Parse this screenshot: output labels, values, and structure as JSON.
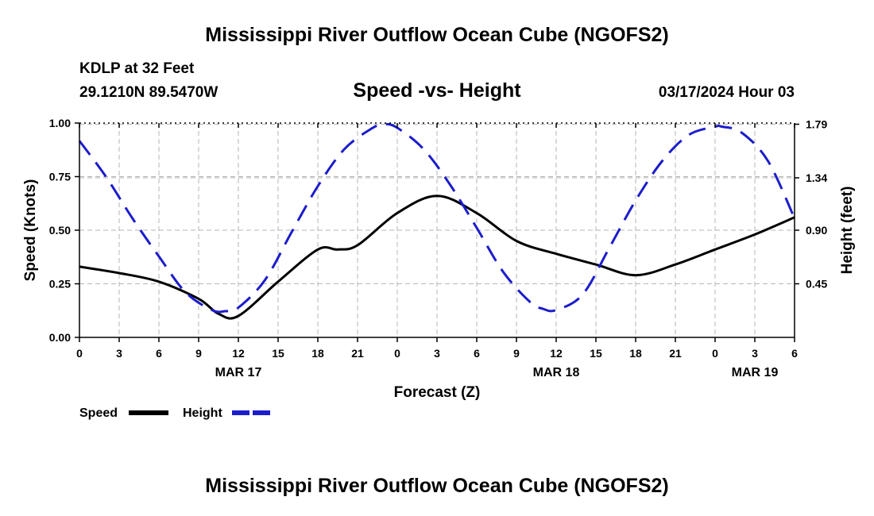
{
  "page": {
    "title": "Mississippi River Outflow Ocean Cube (NGOFS2)",
    "footer_title": "Mississippi River Outflow Ocean Cube (NGOFS2)",
    "station": "KDLP at 32 Feet",
    "coords": "29.1210N  89.5470W",
    "datetime": "03/17/2024 Hour 03"
  },
  "colors": {
    "speed": "#000000",
    "height": "#1c1ccc",
    "grid": "#b4b4b4"
  },
  "chart_data": {
    "type": "line",
    "title": "Speed -vs- Height",
    "xlabel": "Forecast (Z)",
    "ylabel": "Speed (Knots)",
    "y2label": "Height (feet)",
    "xlim": [
      0,
      54
    ],
    "ylim": [
      0,
      1.0
    ],
    "y2lim": [
      0.0,
      1.8
    ],
    "x_ticks": [
      0,
      3,
      6,
      9,
      12,
      15,
      18,
      21,
      24,
      27,
      30,
      33,
      36,
      39,
      42,
      45,
      48,
      51,
      54
    ],
    "x_tick_labels": [
      "0",
      "3",
      "6",
      "9",
      "12",
      "15",
      "18",
      "21",
      "0",
      "3",
      "6",
      "9",
      "12",
      "15",
      "18",
      "21",
      "0",
      "3",
      "6"
    ],
    "date_labels": [
      {
        "x": 12,
        "label": "MAR 17"
      },
      {
        "x": 36,
        "label": "MAR 18"
      },
      {
        "x": 51,
        "label": "MAR 19"
      }
    ],
    "y_ticks": [
      0,
      0.25,
      0.5,
      0.75,
      1.0
    ],
    "y_tick_labels": [
      "0.00",
      "0.25",
      "0.50",
      "0.75",
      "1.00"
    ],
    "y2_ticks": [
      0.45,
      0.9,
      1.34,
      1.79
    ],
    "y2_tick_labels": [
      "0.45",
      "0.90",
      "1.34",
      "1.79"
    ],
    "series": [
      {
        "name": "Speed",
        "axis": "left",
        "style": "solid",
        "x": [
          0,
          3,
          6,
          9,
          10.5,
          12,
          15,
          18,
          19.5,
          21,
          24,
          27,
          30,
          33,
          36,
          39,
          42,
          45,
          48,
          51,
          54
        ],
        "values": [
          0.33,
          0.3,
          0.26,
          0.18,
          0.11,
          0.1,
          0.26,
          0.41,
          0.41,
          0.43,
          0.58,
          0.66,
          0.58,
          0.45,
          0.39,
          0.34,
          0.29,
          0.34,
          0.41,
          0.48,
          0.56
        ]
      },
      {
        "name": "Height",
        "axis": "right",
        "style": "dashed",
        "x": [
          0,
          2,
          4,
          6,
          8,
          10,
          11,
          12,
          14,
          16,
          18,
          20,
          22,
          23,
          24,
          26,
          28,
          30,
          32,
          34,
          35,
          36,
          38,
          40,
          42,
          44,
          46,
          48,
          48.5,
          50,
          52,
          54
        ],
        "values": [
          1.65,
          1.35,
          1.0,
          0.68,
          0.38,
          0.23,
          0.22,
          0.25,
          0.48,
          0.88,
          1.27,
          1.58,
          1.75,
          1.79,
          1.76,
          1.58,
          1.28,
          0.92,
          0.55,
          0.3,
          0.24,
          0.23,
          0.36,
          0.75,
          1.15,
          1.48,
          1.7,
          1.77,
          1.77,
          1.72,
          1.48,
          1.0
        ]
      }
    ],
    "legend": [
      {
        "label": "Speed"
      },
      {
        "label": "Height"
      }
    ],
    "legend_position": "bottom-left"
  }
}
